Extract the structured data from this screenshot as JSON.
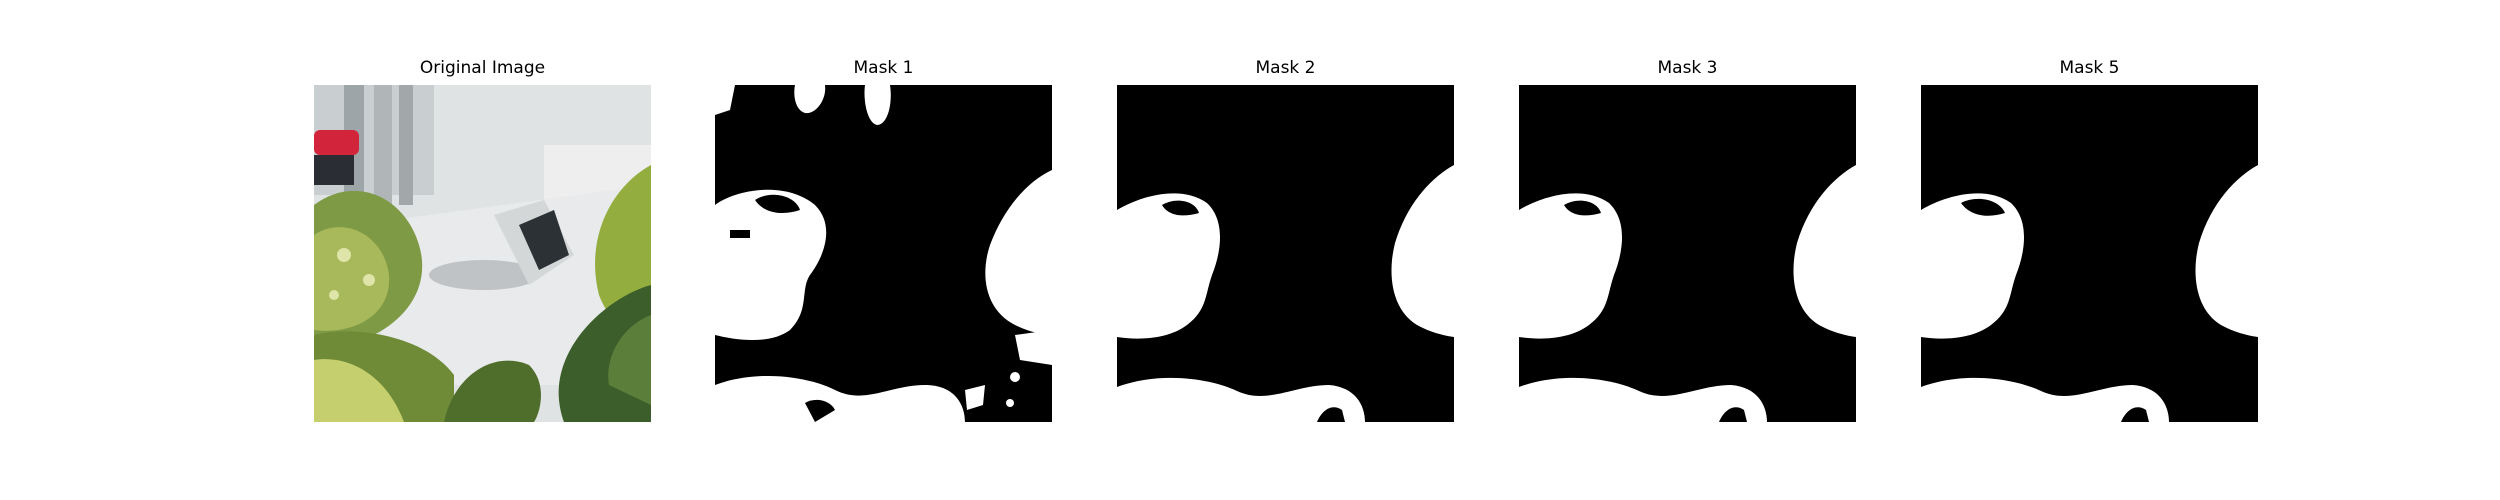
{
  "panels": [
    {
      "title": "Original Image",
      "kind": "photo"
    },
    {
      "title": "Mask 1",
      "kind": "mask",
      "variant": 1
    },
    {
      "title": "Mask 2",
      "kind": "mask",
      "variant": 2
    },
    {
      "title": "Mask 3",
      "kind": "mask",
      "variant": 3
    },
    {
      "title": "Mask 5",
      "kind": "mask",
      "variant": 5
    }
  ],
  "colors": {
    "mask_foreground": "#000000",
    "mask_background": "#ffffff",
    "leaf_green": "#6e8a3a",
    "leaf_dark": "#2f4a1c",
    "leaf_light": "#c8d27a",
    "table_white": "#e9ebec",
    "wall": "#d6dadb",
    "red_object": "#d2243a"
  }
}
